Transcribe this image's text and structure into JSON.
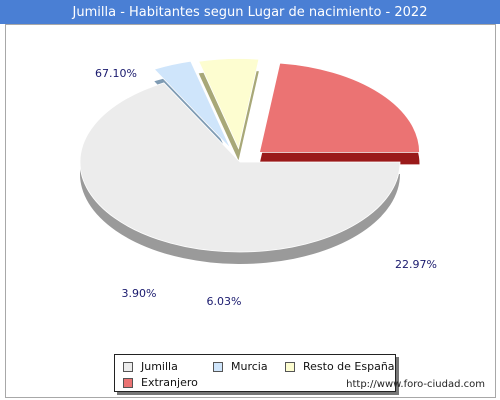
{
  "chart_data": {
    "type": "pie",
    "title": "Jumilla - Habitantes segun Lugar de nacimiento - 2022",
    "categories": [
      "Jumilla",
      "Murcia",
      "Resto de España",
      "Extranjero"
    ],
    "values": [
      67.1,
      3.9,
      6.03,
      22.97
    ],
    "value_labels": [
      "67.10%",
      "3.90%",
      "6.03%",
      "22.97%"
    ],
    "colors": [
      "#ececec",
      "#cfe5fb",
      "#fdfdd0",
      "#eb7373"
    ],
    "side_colors": [
      "#9a9a9a",
      "#7f9bb3",
      "#a8a878",
      "#9a1a1a"
    ],
    "style": "3d-exploded",
    "legend_position": "bottom"
  },
  "footer": {
    "source": "http://www.foro-ciudad.com"
  }
}
